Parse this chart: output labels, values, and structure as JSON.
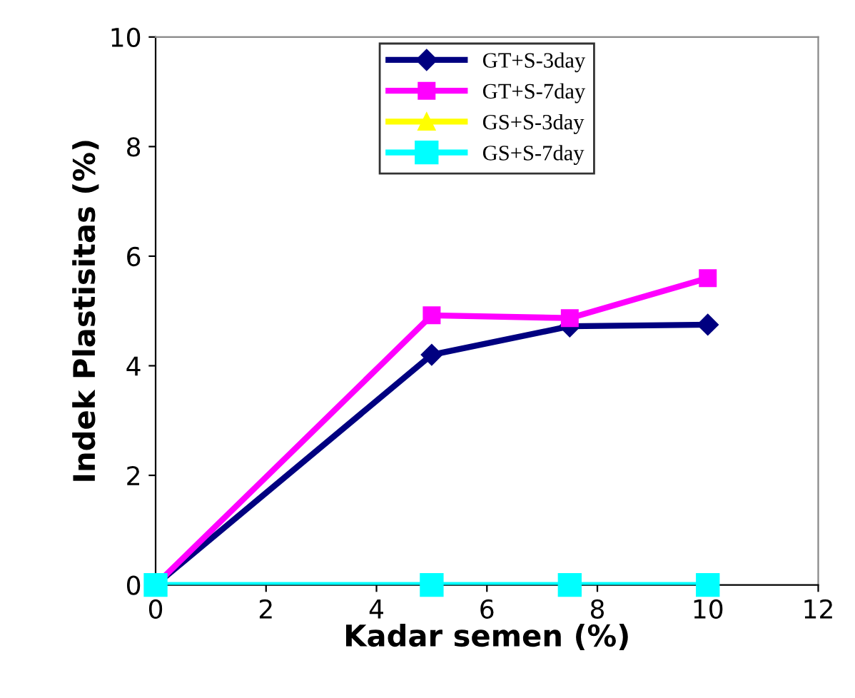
{
  "chart_data": {
    "type": "line",
    "xlabel": "Kadar semen (%)",
    "ylabel": "Indek Plastisitas (%)",
    "x": [
      0,
      5,
      7.5,
      10
    ],
    "xlim": [
      0,
      12
    ],
    "xticks": [
      0,
      2,
      4,
      6,
      8,
      10,
      12
    ],
    "ylim": [
      0,
      10
    ],
    "yticks": [
      0,
      2,
      4,
      6,
      8,
      10
    ],
    "grid": false,
    "legend": "top",
    "line_style": "solid",
    "series": [
      {
        "name": "GT+S-3day",
        "color": "#000080",
        "marker": "diamond",
        "values": [
          0,
          4.2,
          4.72,
          4.75
        ]
      },
      {
        "name": "GT+S-7day",
        "color": "#ff00ff",
        "marker": "square",
        "values": [
          0,
          4.92,
          4.87,
          5.6
        ]
      },
      {
        "name": "GS+S-3day",
        "color": "#ffff00",
        "marker": "triangle",
        "values": [
          null,
          null,
          null,
          null
        ]
      },
      {
        "name": "GS+S-7day",
        "color": "#00ffff",
        "marker": "square",
        "values": [
          0,
          0,
          0,
          0
        ]
      }
    ]
  }
}
